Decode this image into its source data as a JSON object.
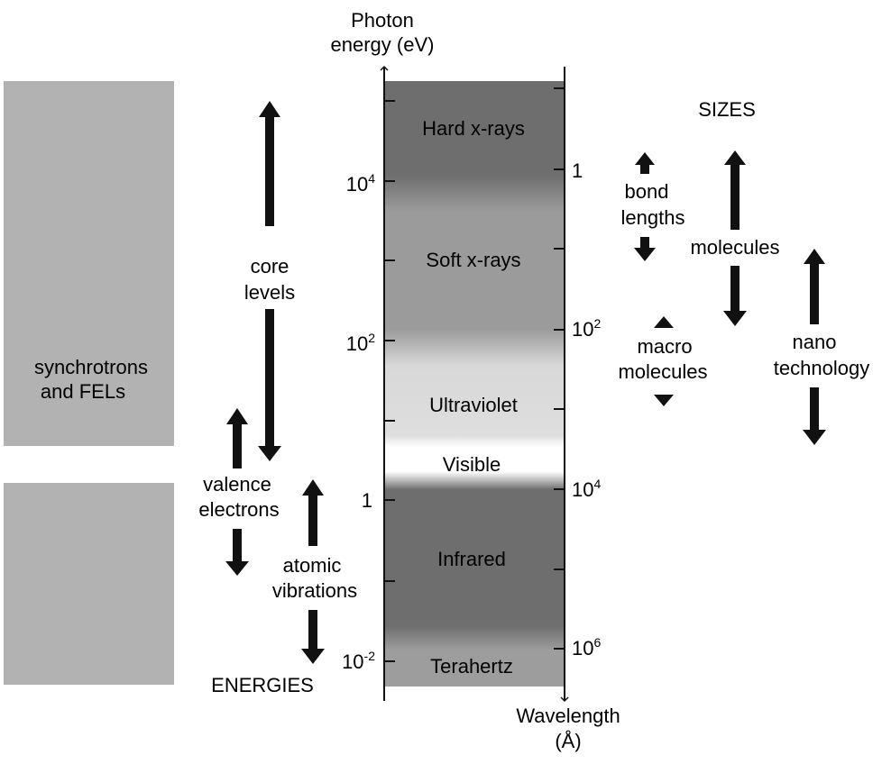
{
  "axis": {
    "energy_title_line1": "Photon",
    "energy_title_line2": "energy (eV)",
    "wavelength_title_line1": "Wavelength",
    "wavelength_title_line2": "(Å)"
  },
  "energy_ticks": [
    {
      "base": "10",
      "exp": "4"
    },
    {
      "base": "10",
      "exp": "2"
    },
    {
      "base": "1",
      "exp": ""
    },
    {
      "base": "10",
      "exp": "-2"
    }
  ],
  "wavelength_ticks": [
    {
      "base": "1",
      "exp": ""
    },
    {
      "base": "10",
      "exp": "2"
    },
    {
      "base": "10",
      "exp": "4"
    },
    {
      "base": "10",
      "exp": "6"
    }
  ],
  "bands": {
    "hard_xrays": "Hard x-rays",
    "soft_xrays": "Soft x-rays",
    "ultraviolet": "Ultraviolet",
    "visible": "Visible",
    "infrared": "Infrared",
    "terahertz": "Terahertz"
  },
  "sources": {
    "line1": "synchrotrons",
    "line2": "and FELs"
  },
  "energies": {
    "heading": "ENERGIES",
    "core_levels_1": "core",
    "core_levels_2": "levels",
    "valence_1": "valence",
    "valence_2": "electrons",
    "atomic_1": "atomic",
    "atomic_2": "vibrations"
  },
  "sizes": {
    "heading": "SIZES",
    "bond_1": "bond",
    "bond_2": "lengths",
    "molecules": "molecules",
    "macro_1": "macro",
    "macro_2": "molecules",
    "nano_1": "nano",
    "nano_2": "technology"
  },
  "colors": {
    "source_box": "#b2b2b2",
    "dark_band": "#6e6e6e",
    "mid_band": "#999999",
    "light_band": "#dcdcdc",
    "arrow": "#111111"
  }
}
